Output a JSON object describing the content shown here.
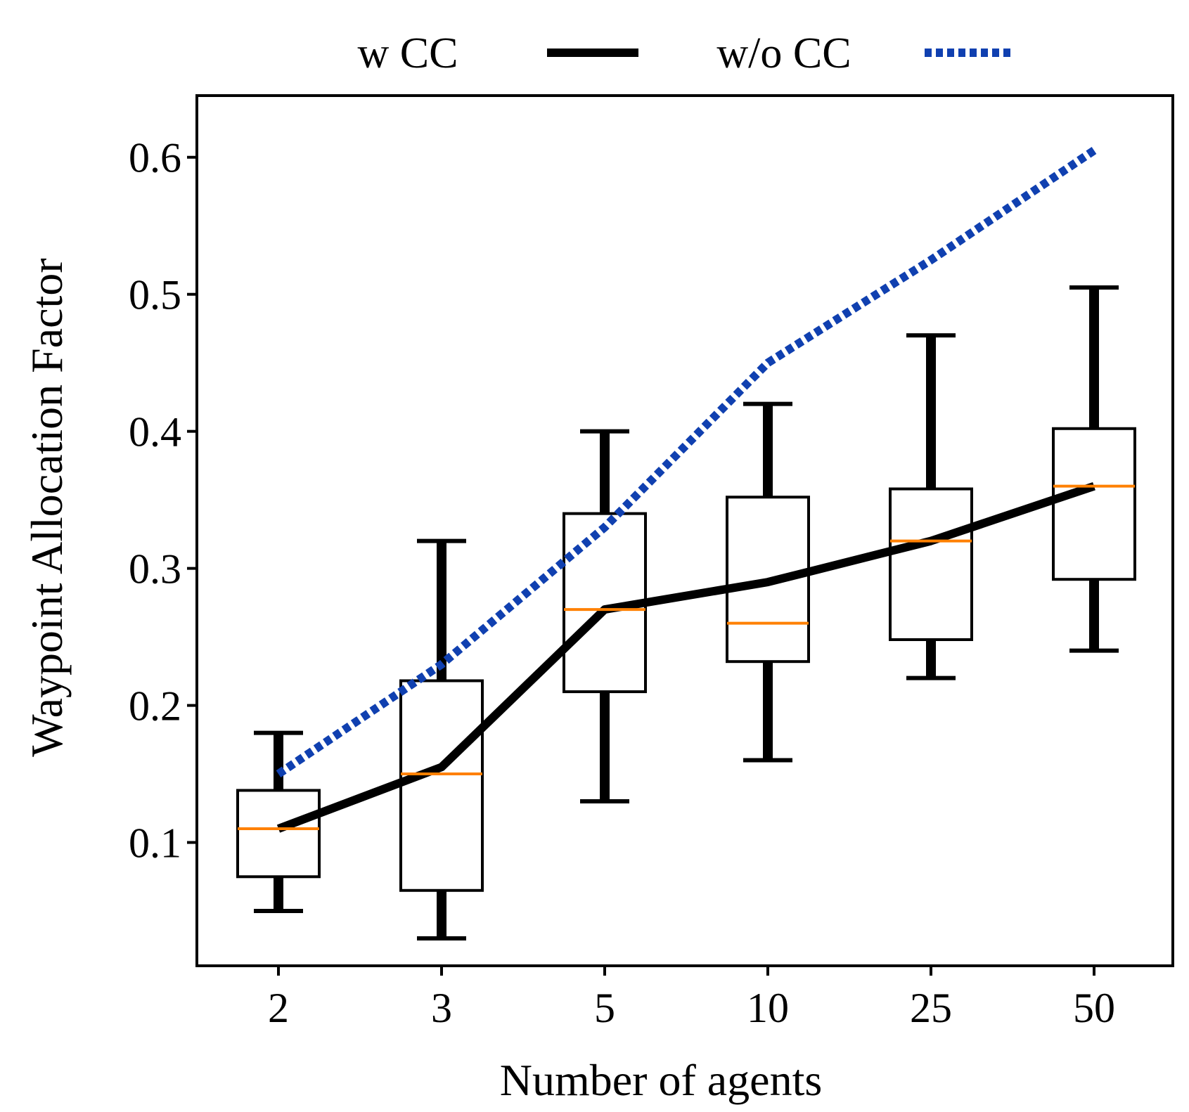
{
  "chart_data": {
    "type": "box",
    "xlabel": "Number of agents",
    "ylabel": "Waypoint Allocation Factor",
    "categories": [
      "2",
      "3",
      "5",
      "10",
      "25",
      "50"
    ],
    "ylim": [
      0.01,
      0.645
    ],
    "yticks": [
      0.1,
      0.2,
      0.3,
      0.4,
      0.5,
      0.6
    ],
    "ytick_labels": [
      "0.1",
      "0.2",
      "0.3",
      "0.4",
      "0.5",
      "0.6"
    ],
    "grid": false,
    "legend_position": "top-center",
    "boxes": [
      {
        "category": "2",
        "whisker_low": 0.05,
        "q1": 0.075,
        "median": 0.11,
        "q3": 0.138,
        "whisker_high": 0.18
      },
      {
        "category": "3",
        "whisker_low": 0.03,
        "q1": 0.065,
        "median": 0.15,
        "q3": 0.218,
        "whisker_high": 0.32
      },
      {
        "category": "5",
        "whisker_low": 0.13,
        "q1": 0.21,
        "median": 0.27,
        "q3": 0.34,
        "whisker_high": 0.4
      },
      {
        "category": "10",
        "whisker_low": 0.16,
        "q1": 0.232,
        "median": 0.26,
        "q3": 0.352,
        "whisker_high": 0.42
      },
      {
        "category": "25",
        "whisker_low": 0.22,
        "q1": 0.248,
        "median": 0.32,
        "q3": 0.358,
        "whisker_high": 0.47
      },
      {
        "category": "50",
        "whisker_low": 0.24,
        "q1": 0.292,
        "median": 0.36,
        "q3": 0.402,
        "whisker_high": 0.505
      }
    ],
    "series": [
      {
        "name": "w CC",
        "style": "solid",
        "color": "#000000",
        "values": [
          0.11,
          0.155,
          0.27,
          0.29,
          0.32,
          0.36
        ]
      },
      {
        "name": "w/o CC",
        "style": "dotted",
        "color": "#1040b0",
        "values": [
          0.15,
          0.23,
          0.33,
          0.45,
          0.525,
          0.605
        ]
      }
    ],
    "colors": {
      "box": "#000000",
      "median": "#ff8000",
      "axis": "#000000"
    }
  }
}
